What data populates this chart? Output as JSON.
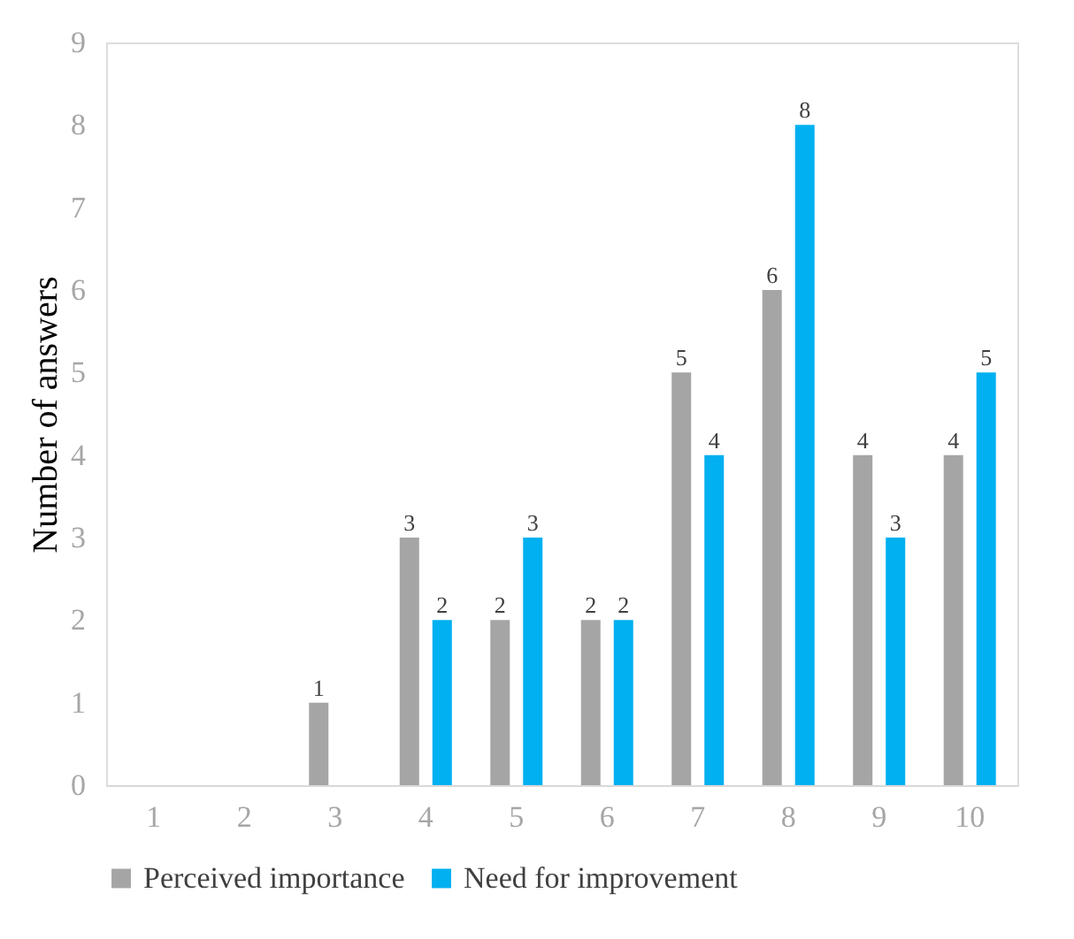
{
  "chart_data": {
    "type": "bar",
    "ylabel": "Number of answers",
    "categories": [
      "1",
      "2",
      "3",
      "4",
      "5",
      "6",
      "7",
      "8",
      "9",
      "10"
    ],
    "series": [
      {
        "name": "Perceived importance",
        "color": "#a5a5a5",
        "values": [
          0,
          0,
          1,
          3,
          2,
          2,
          5,
          6,
          4,
          4
        ],
        "value_labels": [
          null,
          null,
          "1",
          "3",
          "2",
          "2",
          "5",
          "6",
          "4",
          "4"
        ]
      },
      {
        "name": "Need for improvement",
        "color": "#00b0f0",
        "values": [
          0,
          0,
          0,
          2,
          3,
          2,
          4,
          8,
          3,
          5
        ],
        "value_labels": [
          null,
          null,
          null,
          "2",
          "3",
          "2",
          "4",
          "8",
          "3",
          "5"
        ]
      }
    ],
    "ylim": [
      0,
      9
    ],
    "yticks": [
      0,
      1,
      2,
      3,
      4,
      5,
      6,
      7,
      8,
      9
    ],
    "grid": false,
    "legend": "bottom"
  }
}
